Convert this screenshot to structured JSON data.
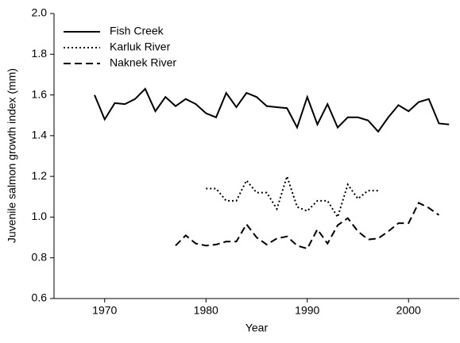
{
  "chart_data": {
    "type": "line",
    "x_label": "Year",
    "y_label": "Juvenile salmon growth index (mm)",
    "x": [
      1969,
      1970,
      1971,
      1972,
      1973,
      1974,
      1975,
      1976,
      1977,
      1978,
      1979,
      1980,
      1981,
      1982,
      1983,
      1984,
      1985,
      1986,
      1987,
      1988,
      1989,
      1990,
      1991,
      1992,
      1993,
      1994,
      1995,
      1996,
      1997,
      1998,
      1999,
      2000,
      2001,
      2002,
      2003,
      2004
    ],
    "series": [
      {
        "name": "Fish Creek",
        "color": "#000000",
        "dash": "solid",
        "values": [
          1.6,
          1.48,
          1.56,
          1.555,
          1.58,
          1.63,
          1.52,
          1.59,
          1.545,
          1.58,
          1.555,
          1.51,
          1.49,
          1.61,
          1.54,
          1.61,
          1.59,
          1.545,
          1.54,
          1.535,
          1.44,
          1.59,
          1.455,
          1.555,
          1.44,
          1.49,
          1.49,
          1.475,
          1.42,
          1.49,
          1.55,
          1.52,
          1.565,
          1.58,
          1.46,
          1.455
        ]
      },
      {
        "name": "Karluk River",
        "color": "#000000",
        "dash": "dotted",
        "values": [
          null,
          null,
          null,
          null,
          null,
          null,
          null,
          null,
          null,
          null,
          null,
          1.14,
          1.14,
          1.08,
          1.08,
          1.18,
          1.12,
          1.12,
          1.04,
          1.2,
          1.05,
          1.03,
          1.08,
          1.08,
          1.0,
          1.16,
          1.09,
          1.13,
          1.13,
          null,
          null,
          null,
          null,
          null,
          null,
          null
        ]
      },
      {
        "name": "Naknek River",
        "color": "#000000",
        "dash": "dashed",
        "values": [
          null,
          null,
          null,
          null,
          null,
          null,
          null,
          null,
          0.86,
          0.91,
          0.87,
          0.86,
          0.865,
          0.88,
          0.88,
          0.965,
          0.9,
          0.865,
          0.895,
          0.905,
          0.86,
          0.845,
          0.94,
          0.87,
          0.96,
          0.995,
          0.93,
          0.89,
          0.895,
          0.93,
          0.97,
          0.97,
          1.07,
          1.045,
          1.01,
          null
        ]
      }
    ],
    "xlim": [
      1965,
      2005
    ],
    "xticks": [
      1970,
      1980,
      1990,
      2000
    ],
    "ylim": [
      0.6,
      2.0
    ],
    "yticks": [
      0.6,
      0.8,
      {
        "value": 1.0,
        "label": "1.0"
      },
      1.2,
      1.4,
      1.6,
      1.8,
      {
        "value": 2.0,
        "label": "2.0"
      }
    ],
    "grid": false,
    "legend": "upper left"
  }
}
